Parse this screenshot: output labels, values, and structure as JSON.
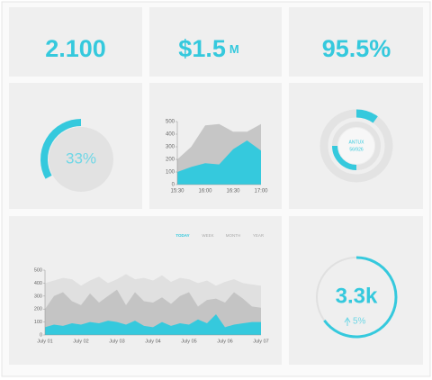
{
  "kpis": [
    {
      "text": "2.100"
    },
    {
      "text": "$1.5",
      "unit": "M"
    },
    {
      "text": "95.5%"
    }
  ],
  "gauge": {
    "type": "gauge",
    "value": 33,
    "label": "33%",
    "color": "#35c9dd"
  },
  "area_chart": {
    "type": "area",
    "categories": [
      "15:30",
      null,
      "16:00",
      null,
      "16:30",
      null,
      "17:00"
    ],
    "ylim": [
      0,
      500
    ],
    "yticks": [
      0,
      100,
      200,
      300,
      400,
      500
    ],
    "series": [
      {
        "color": "#c6c6c6",
        "values": [
          200,
          300,
          470,
          480,
          420,
          420,
          480
        ]
      },
      {
        "color": "#35c9dd",
        "values": [
          100,
          140,
          170,
          160,
          280,
          350,
          270
        ]
      }
    ]
  },
  "ring": {
    "type": "ring",
    "title": "ANTUX",
    "subtitle": "56/926",
    "values": [
      10,
      25
    ],
    "color": "#35c9dd"
  },
  "tabs": [
    "TODAY",
    "WEEK",
    "MONTH",
    "YEAR"
  ],
  "main_chart": {
    "type": "area",
    "categories": [
      "July 01",
      null,
      null,
      null,
      "July 02",
      null,
      null,
      null,
      "July 03",
      null,
      null,
      null,
      "July 04",
      null,
      null,
      null,
      "July 05",
      null,
      null,
      null,
      "July 06",
      null,
      null,
      null,
      "July 07"
    ],
    "ylim": [
      0,
      500
    ],
    "yticks": [
      0,
      100,
      200,
      300,
      400,
      500
    ],
    "series": [
      {
        "color": "#e0e0e0",
        "values": [
          400,
          420,
          440,
          430,
          380,
          420,
          450,
          400,
          430,
          470,
          430,
          440,
          420,
          460,
          410,
          440,
          430,
          400,
          420,
          380,
          410,
          430,
          400,
          390,
          380
        ]
      },
      {
        "color": "#c4c4c4",
        "values": [
          200,
          300,
          330,
          260,
          230,
          320,
          250,
          300,
          350,
          230,
          330,
          260,
          250,
          290,
          240,
          300,
          330,
          220,
          270,
          280,
          250,
          330,
          280,
          220,
          210
        ]
      },
      {
        "color": "#35c9dd",
        "values": [
          60,
          80,
          70,
          90,
          80,
          100,
          90,
          110,
          100,
          80,
          110,
          70,
          60,
          100,
          70,
          90,
          80,
          120,
          90,
          160,
          60,
          80,
          90,
          100,
          100
        ]
      }
    ]
  },
  "progress": {
    "type": "gauge",
    "value": 65,
    "label": "3.3k",
    "change": "5%",
    "color": "#35c9dd"
  }
}
